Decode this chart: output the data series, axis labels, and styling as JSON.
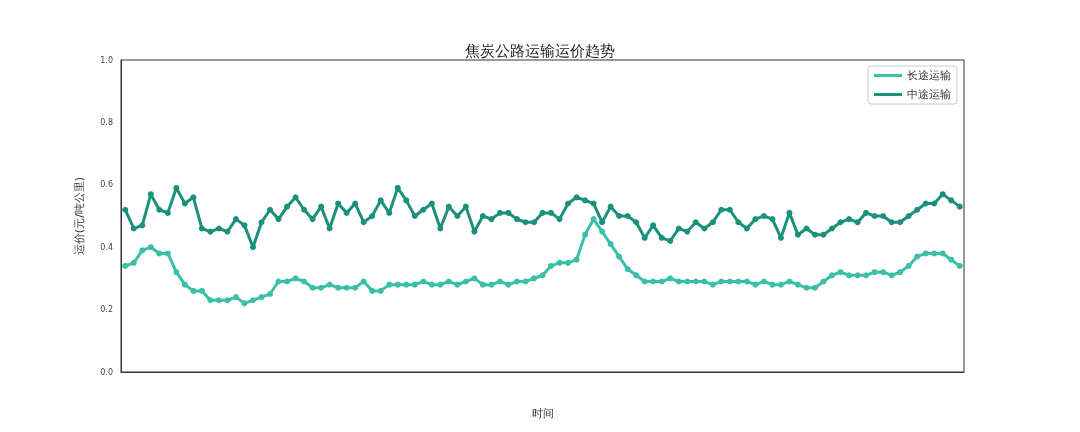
{
  "chart_data": {
    "type": "line",
    "title": "焦炭公路运输运价趋势",
    "xlabel": "时间",
    "ylabel": "运价(元/吨公里)",
    "categories": [
      null,
      null,
      null,
      null,
      null,
      null,
      null,
      null,
      null,
      null,
      null,
      null,
      null,
      null,
      null,
      null,
      null,
      null,
      null,
      null,
      null,
      null,
      null,
      null,
      null,
      null,
      null,
      null,
      null,
      null,
      null,
      null,
      null,
      null,
      null,
      null,
      null,
      null,
      null,
      null,
      null,
      null,
      null,
      null,
      null,
      null,
      null,
      null,
      null,
      null,
      null,
      null,
      null,
      null,
      null,
      null,
      null,
      null,
      null,
      null,
      null,
      null,
      null,
      null,
      null,
      null,
      null,
      null,
      null,
      null,
      null,
      null,
      null,
      null,
      null,
      null,
      null,
      null,
      null,
      null,
      null,
      null,
      null,
      null,
      null,
      null,
      null,
      null,
      null,
      null,
      null,
      null,
      null,
      null,
      null,
      null,
      null,
      null,
      null
    ],
    "series": [
      {
        "name": "长途运输",
        "color": "#3cbfa9",
        "values": [
          0.34,
          0.35,
          0.39,
          0.4,
          0.38,
          0.38,
          0.32,
          0.28,
          0.26,
          0.26,
          0.23,
          0.23,
          0.23,
          0.24,
          0.22,
          0.23,
          0.24,
          0.25,
          0.29,
          0.29,
          0.3,
          0.29,
          0.27,
          0.27,
          0.28,
          0.27,
          0.27,
          0.27,
          0.29,
          0.26,
          0.26,
          0.28,
          0.28,
          0.28,
          0.28,
          0.29,
          0.28,
          0.28,
          0.29,
          0.28,
          0.29,
          0.3,
          0.28,
          0.28,
          0.29,
          0.28,
          0.29,
          0.29,
          0.3,
          0.31,
          0.34,
          0.35,
          0.35,
          0.36,
          0.44,
          0.49,
          0.45,
          0.41,
          0.37,
          0.33,
          0.31,
          0.29,
          0.29,
          0.29,
          0.3,
          0.29,
          0.29,
          0.29,
          0.29,
          0.28,
          0.29,
          0.29,
          0.29,
          0.29,
          0.28,
          0.29,
          0.28,
          0.28,
          0.29,
          0.28,
          0.27,
          0.27,
          0.29,
          0.31,
          0.32,
          0.31,
          0.31,
          0.31,
          0.32,
          0.32,
          0.31,
          0.32,
          0.34,
          0.37,
          0.38,
          0.38,
          0.38,
          0.36,
          0.34
        ]
      },
      {
        "name": "中途运输",
        "color": "#1b917c",
        "values": [
          0.52,
          0.46,
          0.47,
          0.57,
          0.52,
          0.51,
          0.59,
          0.54,
          0.56,
          0.46,
          0.45,
          0.46,
          0.45,
          0.49,
          0.47,
          0.4,
          0.48,
          0.52,
          0.49,
          0.53,
          0.56,
          0.52,
          0.49,
          0.53,
          0.46,
          0.54,
          0.51,
          0.54,
          0.48,
          0.5,
          0.55,
          0.51,
          0.59,
          0.55,
          0.5,
          0.52,
          0.54,
          0.46,
          0.53,
          0.5,
          0.53,
          0.45,
          0.5,
          0.49,
          0.51,
          0.51,
          0.49,
          0.48,
          0.48,
          0.51,
          0.51,
          0.49,
          0.54,
          0.56,
          0.55,
          0.54,
          0.48,
          0.53,
          0.5,
          0.5,
          0.48,
          0.43,
          0.47,
          0.43,
          0.42,
          0.46,
          0.45,
          0.48,
          0.46,
          0.48,
          0.52,
          0.52,
          0.48,
          0.46,
          0.49,
          0.5,
          0.49,
          0.43,
          0.51,
          0.44,
          0.46,
          0.44,
          0.44,
          0.46,
          0.48,
          0.49,
          0.48,
          0.51,
          0.5,
          0.5,
          0.48,
          0.48,
          0.5,
          0.52,
          0.54,
          0.54,
          0.57,
          0.55,
          0.53
        ]
      }
    ],
    "ylim": [
      0,
      1
    ],
    "yticks": [
      {
        "value": 0,
        "label": "0.0"
      },
      0.2,
      0.4,
      0.6,
      0.8,
      {
        "value": 1,
        "label": "1.0"
      }
    ],
    "grid": false,
    "legend": "top right",
    "marker": "circle",
    "line_style": "solid"
  }
}
